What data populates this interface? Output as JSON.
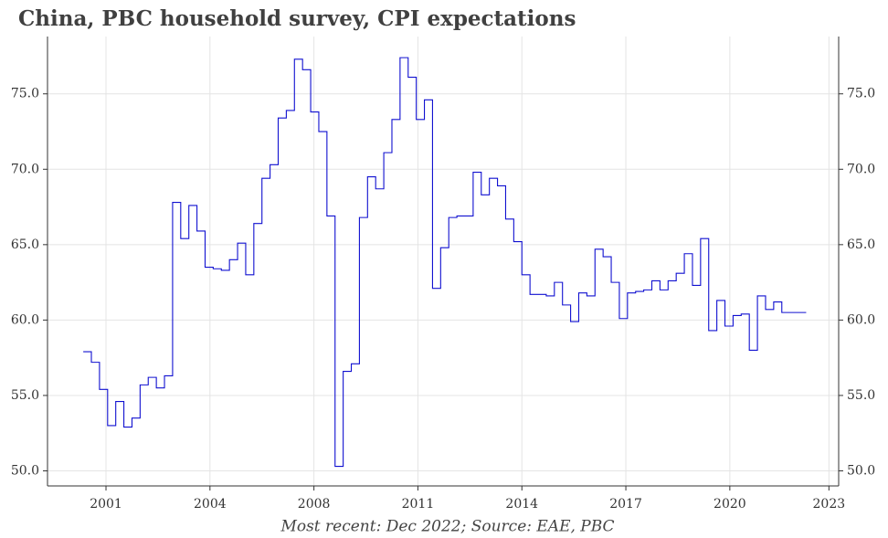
{
  "chart_data": {
    "type": "line",
    "title": "China, PBC household survey, CPI expectations",
    "xlabel": "Most recent: Dec 2022; Source: EAE, PBC",
    "x": [
      2001,
      2001.25,
      2001.5,
      2001.75,
      2002,
      2002.25,
      2002.5,
      2002.75,
      2003,
      2003.25,
      2003.5,
      2003.75,
      2004,
      2004.25,
      2004.5,
      2004.75,
      2005,
      2005.25,
      2005.5,
      2005.75,
      2006,
      2006.25,
      2006.5,
      2006.75,
      2007,
      2007.25,
      2007.5,
      2007.75,
      2008,
      2008.25,
      2008.5,
      2008.75,
      2009,
      2009.25,
      2009.5,
      2009.75,
      2010,
      2010.25,
      2010.5,
      2010.75,
      2011,
      2011.25,
      2011.5,
      2011.75,
      2012,
      2012.25,
      2012.5,
      2012.75,
      2013,
      2013.25,
      2013.5,
      2013.75,
      2014,
      2014.25,
      2014.5,
      2014.75,
      2015,
      2015.25,
      2015.5,
      2015.75,
      2016,
      2016.25,
      2016.5,
      2016.75,
      2017,
      2017.25,
      2017.5,
      2017.75,
      2018,
      2018.25,
      2018.5,
      2018.75,
      2019,
      2019.25,
      2019.5,
      2019.75,
      2020,
      2020.25,
      2020.5,
      2020.75,
      2021,
      2021.25,
      2021.5,
      2021.75,
      2022,
      2022.25,
      2022.5,
      2022.75,
      2023
    ],
    "series": [
      {
        "color": "#1010d0",
        "values": [
          57.9,
          57.2,
          55.4,
          53.0,
          54.6,
          52.9,
          53.5,
          55.7,
          56.2,
          55.5,
          56.3,
          67.8,
          65.4,
          67.6,
          65.9,
          63.5,
          63.4,
          63.3,
          64.0,
          65.1,
          63.0,
          66.4,
          69.4,
          70.3,
          73.4,
          73.9,
          77.3,
          76.6,
          73.8,
          72.5,
          66.9,
          50.3,
          56.6,
          57.1,
          66.8,
          69.5,
          68.7,
          71.1,
          73.3,
          77.4,
          76.1,
          73.3,
          74.6,
          62.1,
          64.8,
          66.8,
          66.9,
          66.9,
          69.8,
          68.3,
          69.4,
          68.9,
          66.7,
          65.2,
          63.0,
          61.7,
          61.7,
          61.6,
          62.5,
          61.0,
          59.9,
          61.8,
          61.6,
          64.7,
          64.2,
          62.5,
          60.1,
          61.8,
          61.9,
          62.0,
          62.6,
          62.0,
          62.6,
          63.1,
          64.4,
          62.3,
          65.4,
          59.3,
          61.3,
          59.6,
          60.3,
          60.4,
          58.0,
          61.6,
          60.7,
          61.2,
          60.5,
          60.5,
          60.5
        ]
      }
    ],
    "xlim": [
      1999.9,
      2024.25
    ],
    "xticks": [
      {
        "value": 2001.7,
        "label": "2001"
      },
      {
        "value": 2004.9,
        "label": "2004"
      },
      {
        "value": 2008.1,
        "label": "2008"
      },
      {
        "value": 2011.3,
        "label": "2011"
      },
      {
        "value": 2014.5,
        "label": "2014"
      },
      {
        "value": 2017.7,
        "label": "2017"
      },
      {
        "value": 2020.9,
        "label": "2020"
      },
      {
        "value": 2023.95,
        "label": "2023"
      }
    ],
    "ylim": [
      49.0,
      78.8
    ],
    "yticks": [
      {
        "value": 50,
        "label": "50.0"
      },
      {
        "value": 55,
        "label": "55.0"
      },
      {
        "value": 60,
        "label": "60.0"
      },
      {
        "value": 65,
        "label": "65.0"
      },
      {
        "value": 70,
        "label": "70.0"
      },
      {
        "value": 75,
        "label": "75.0"
      }
    ],
    "grid": true
  }
}
